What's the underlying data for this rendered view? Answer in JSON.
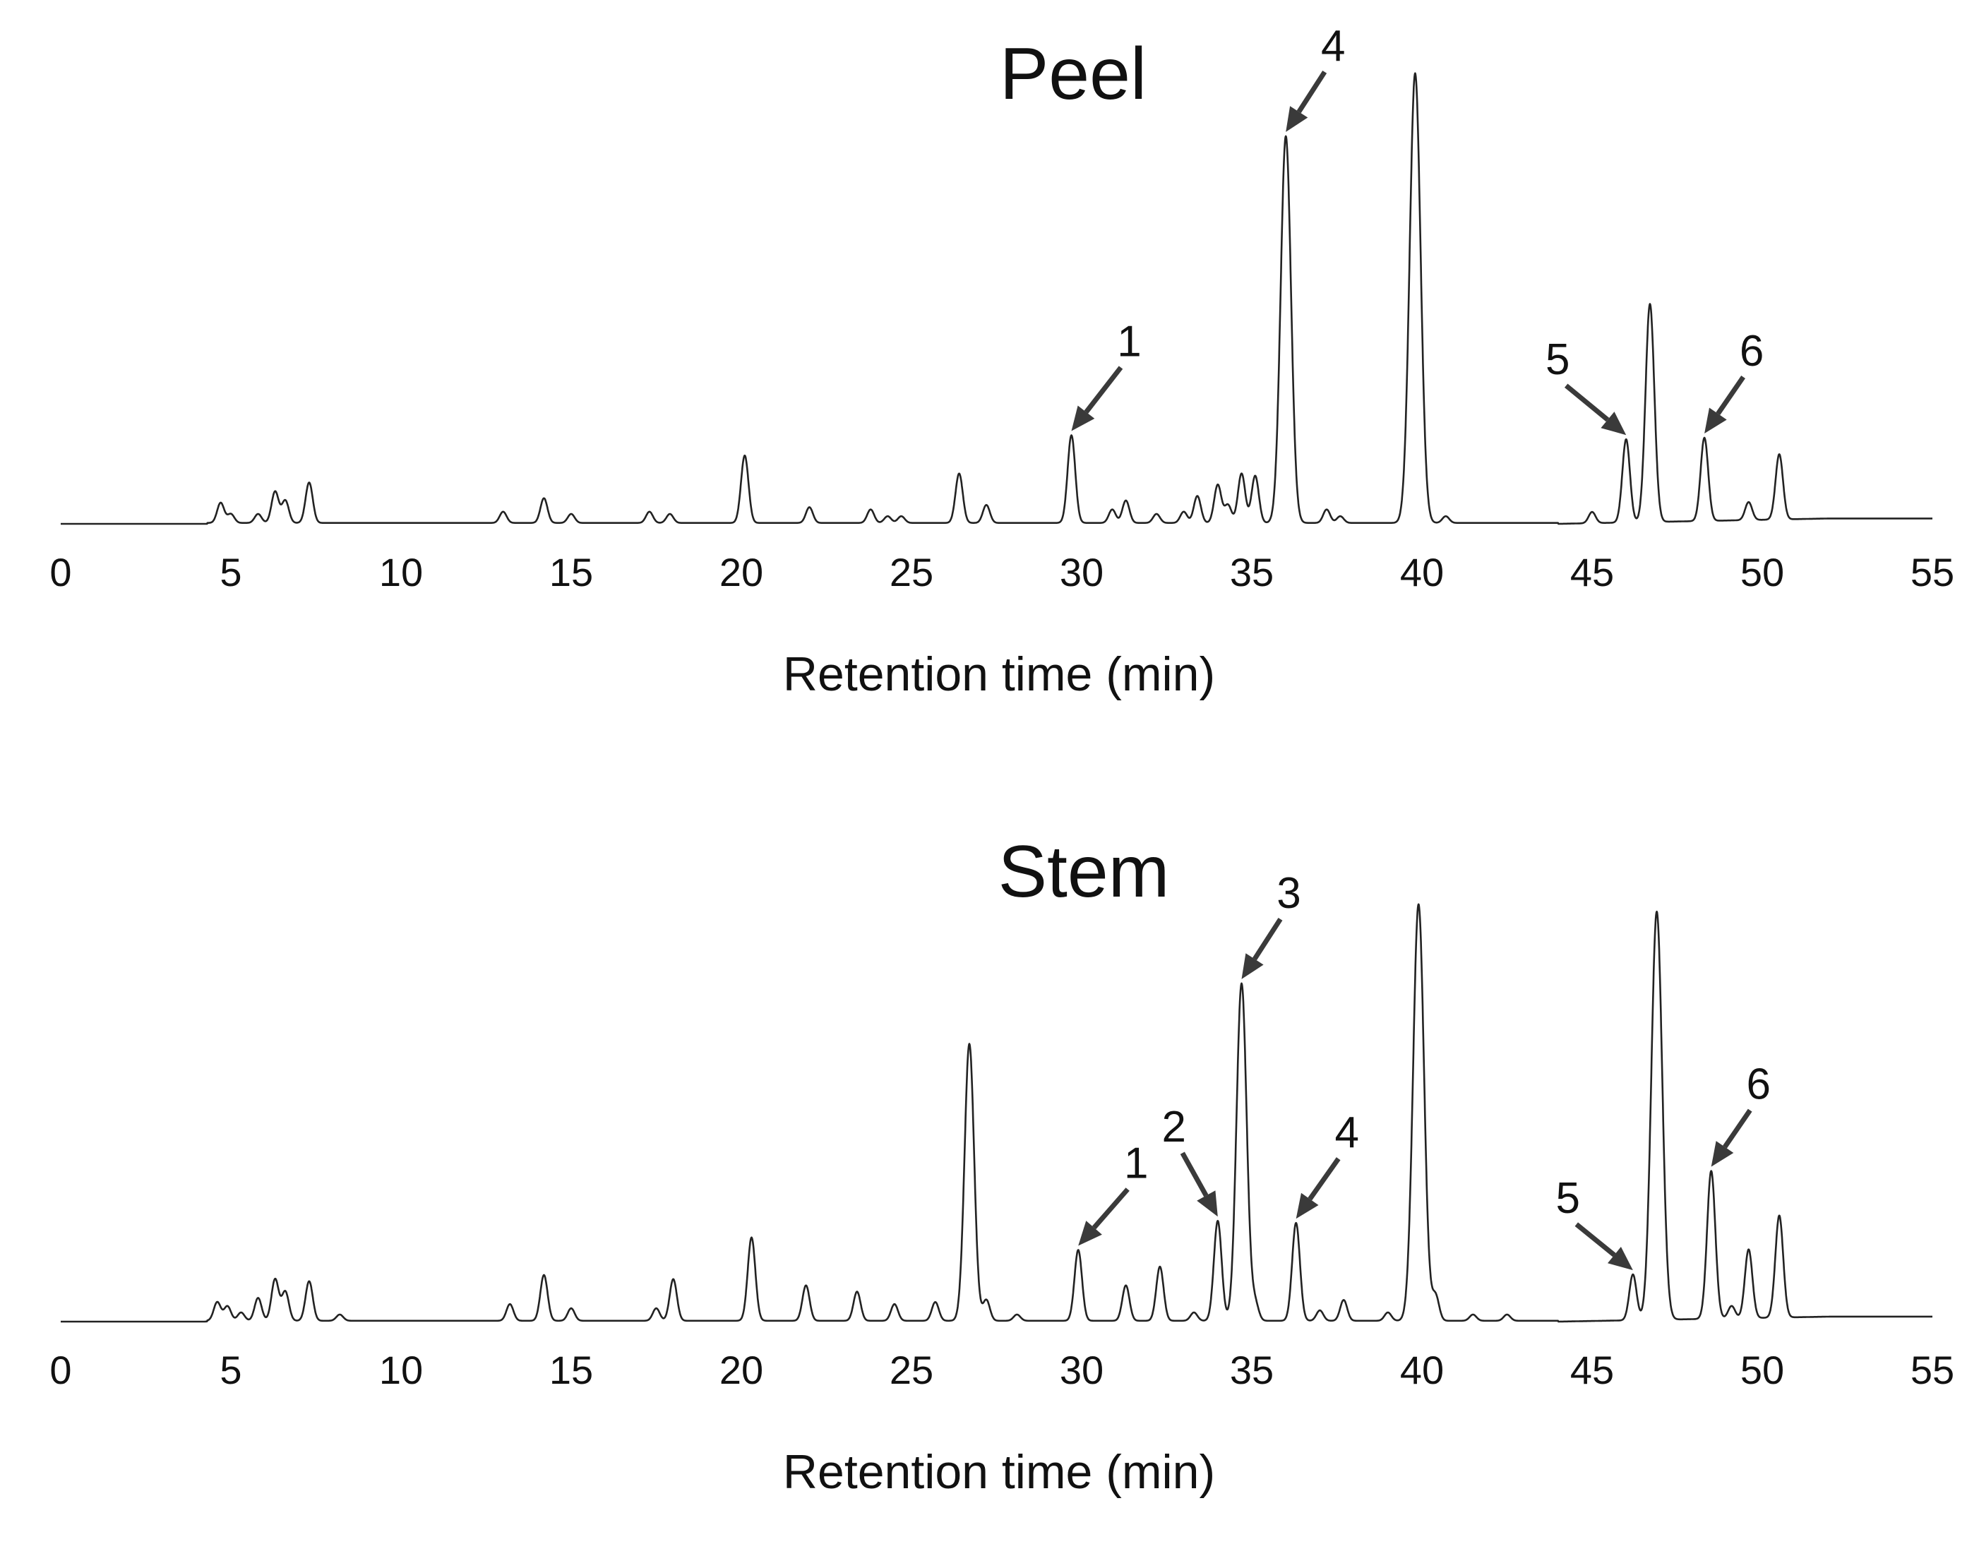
{
  "chart_data": [
    {
      "type": "line",
      "title": "Peel",
      "xlabel": "Retention time (min)",
      "ylabel": "",
      "xlim": [
        0,
        55
      ],
      "ylim": [
        0,
        1
      ],
      "xticks": [
        "0",
        "5",
        "10",
        "15",
        "20",
        "25",
        "30",
        "35",
        "40",
        "45",
        "50",
        "55"
      ],
      "peaks": [
        {
          "x": 4.7,
          "h": 0.045
        },
        {
          "x": 5.0,
          "h": 0.02
        },
        {
          "x": 5.8,
          "h": 0.02
        },
        {
          "x": 6.3,
          "h": 0.07
        },
        {
          "x": 6.6,
          "h": 0.05
        },
        {
          "x": 7.3,
          "h": 0.09
        },
        {
          "x": 13.0,
          "h": 0.025
        },
        {
          "x": 14.2,
          "h": 0.055
        },
        {
          "x": 15.0,
          "h": 0.02
        },
        {
          "x": 17.3,
          "h": 0.025
        },
        {
          "x": 17.9,
          "h": 0.02
        },
        {
          "x": 20.1,
          "h": 0.15
        },
        {
          "x": 22.0,
          "h": 0.035
        },
        {
          "x": 23.8,
          "h": 0.03
        },
        {
          "x": 24.3,
          "h": 0.015
        },
        {
          "x": 24.7,
          "h": 0.015
        },
        {
          "x": 26.4,
          "h": 0.11
        },
        {
          "x": 27.2,
          "h": 0.04
        },
        {
          "x": 29.7,
          "h": 0.195
        },
        {
          "x": 30.9,
          "h": 0.03
        },
        {
          "x": 31.3,
          "h": 0.05
        },
        {
          "x": 32.2,
          "h": 0.02
        },
        {
          "x": 33.0,
          "h": 0.025
        },
        {
          "x": 33.4,
          "h": 0.06
        },
        {
          "x": 34.0,
          "h": 0.085
        },
        {
          "x": 34.3,
          "h": 0.04
        },
        {
          "x": 34.7,
          "h": 0.11
        },
        {
          "x": 35.1,
          "h": 0.105
        },
        {
          "x": 36.0,
          "h": 0.86
        },
        {
          "x": 37.2,
          "h": 0.03
        },
        {
          "x": 37.6,
          "h": 0.015
        },
        {
          "x": 39.8,
          "h": 1.0
        },
        {
          "x": 40.7,
          "h": 0.015
        },
        {
          "x": 45.0,
          "h": 0.025
        },
        {
          "x": 46.0,
          "h": 0.185
        },
        {
          "x": 46.7,
          "h": 0.485
        },
        {
          "x": 48.3,
          "h": 0.185
        },
        {
          "x": 49.6,
          "h": 0.04
        },
        {
          "x": 50.5,
          "h": 0.145
        }
      ],
      "annotations": [
        {
          "label": "1",
          "x": 29.7
        },
        {
          "label": "4",
          "x": 36.0
        },
        {
          "label": "5",
          "x": 46.0
        },
        {
          "label": "6",
          "x": 48.3
        }
      ]
    },
    {
      "type": "line",
      "title": "Stem",
      "xlabel": "Retention time (min)",
      "ylabel": "",
      "xlim": [
        0,
        55
      ],
      "ylim": [
        0,
        1
      ],
      "xticks": [
        "0",
        "5",
        "10",
        "15",
        "20",
        "25",
        "30",
        "35",
        "40",
        "45",
        "50",
        "55"
      ],
      "peaks": [
        {
          "x": 4.6,
          "h": 0.045
        },
        {
          "x": 4.9,
          "h": 0.035
        },
        {
          "x": 5.3,
          "h": 0.02
        },
        {
          "x": 5.8,
          "h": 0.055
        },
        {
          "x": 6.3,
          "h": 0.1
        },
        {
          "x": 6.6,
          "h": 0.07
        },
        {
          "x": 7.3,
          "h": 0.095
        },
        {
          "x": 8.2,
          "h": 0.015
        },
        {
          "x": 13.2,
          "h": 0.04
        },
        {
          "x": 14.2,
          "h": 0.11
        },
        {
          "x": 15.0,
          "h": 0.03
        },
        {
          "x": 17.5,
          "h": 0.03
        },
        {
          "x": 18.0,
          "h": 0.1
        },
        {
          "x": 20.3,
          "h": 0.2
        },
        {
          "x": 21.9,
          "h": 0.085
        },
        {
          "x": 23.4,
          "h": 0.07
        },
        {
          "x": 24.5,
          "h": 0.04
        },
        {
          "x": 25.7,
          "h": 0.045
        },
        {
          "x": 26.7,
          "h": 0.665
        },
        {
          "x": 27.2,
          "h": 0.05
        },
        {
          "x": 28.1,
          "h": 0.015
        },
        {
          "x": 29.9,
          "h": 0.17
        },
        {
          "x": 31.3,
          "h": 0.085
        },
        {
          "x": 32.3,
          "h": 0.13
        },
        {
          "x": 33.3,
          "h": 0.02
        },
        {
          "x": 34.0,
          "h": 0.24
        },
        {
          "x": 34.7,
          "h": 0.81
        },
        {
          "x": 35.1,
          "h": 0.04
        },
        {
          "x": 36.3,
          "h": 0.235
        },
        {
          "x": 37.0,
          "h": 0.025
        },
        {
          "x": 37.7,
          "h": 0.05
        },
        {
          "x": 39.0,
          "h": 0.02
        },
        {
          "x": 39.9,
          "h": 1.0
        },
        {
          "x": 40.4,
          "h": 0.06
        },
        {
          "x": 41.5,
          "h": 0.015
        },
        {
          "x": 42.5,
          "h": 0.015
        },
        {
          "x": 46.2,
          "h": 0.11
        },
        {
          "x": 46.9,
          "h": 0.98
        },
        {
          "x": 48.5,
          "h": 0.355
        },
        {
          "x": 49.1,
          "h": 0.03
        },
        {
          "x": 49.6,
          "h": 0.165
        },
        {
          "x": 50.5,
          "h": 0.245
        }
      ],
      "annotations": [
        {
          "label": "1",
          "x": 29.9
        },
        {
          "label": "2",
          "x": 34.0
        },
        {
          "label": "3",
          "x": 34.7
        },
        {
          "label": "4",
          "x": 36.3
        },
        {
          "label": "5",
          "x": 46.2
        },
        {
          "label": "6",
          "x": 48.5
        }
      ]
    }
  ]
}
